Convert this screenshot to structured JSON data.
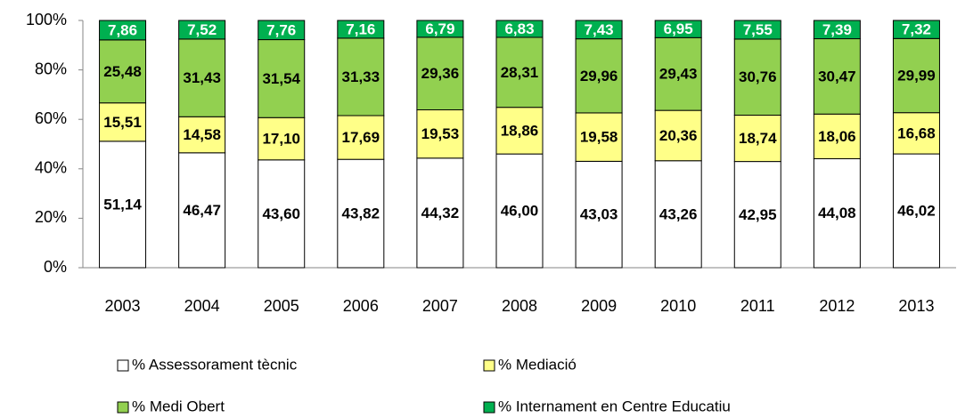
{
  "chart_data": {
    "type": "stacked_bar",
    "categories": [
      "2003",
      "2004",
      "2005",
      "2006",
      "2007",
      "2008",
      "2009",
      "2010",
      "2011",
      "2012",
      "2013"
    ],
    "series": [
      {
        "name": "% Assessorament tècnic",
        "color": "#ffffff",
        "label_color": "#000000",
        "values": [
          51.14,
          46.47,
          43.6,
          43.82,
          44.32,
          46.0,
          43.03,
          43.26,
          42.95,
          44.08,
          46.02
        ],
        "value_labels": [
          "51,14",
          "46,47",
          "43,60",
          "43,82",
          "44,32",
          "46,00",
          "43,03",
          "43,26",
          "42,95",
          "44,08",
          "46,02"
        ]
      },
      {
        "name": "% Mediació",
        "color": "#ffff88",
        "label_color": "#000000",
        "values": [
          15.51,
          14.58,
          17.1,
          17.69,
          19.53,
          18.86,
          19.58,
          20.36,
          18.74,
          18.06,
          16.68
        ],
        "value_labels": [
          "15,51",
          "14,58",
          "17,10",
          "17,69",
          "19,53",
          "18,86",
          "19,58",
          "20,36",
          "18,74",
          "18,06",
          "16,68"
        ]
      },
      {
        "name": "% Medi Obert",
        "color": "#92d050",
        "label_color": "#000000",
        "values": [
          25.48,
          31.43,
          31.54,
          31.33,
          29.36,
          28.31,
          29.96,
          29.43,
          30.76,
          30.47,
          29.99
        ],
        "value_labels": [
          "25,48",
          "31,43",
          "31,54",
          "31,33",
          "29,36",
          "28,31",
          "29,96",
          "29,43",
          "30,76",
          "30,47",
          "29,99"
        ]
      },
      {
        "name": "% Internament en Centre Educatiu",
        "color": "#00b050",
        "label_color": "#ffffff",
        "values": [
          7.86,
          7.52,
          7.76,
          7.16,
          6.79,
          6.83,
          7.43,
          6.95,
          7.55,
          7.39,
          7.32
        ],
        "value_labels": [
          "7,86",
          "7,52",
          "7,76",
          "7,16",
          "6,79",
          "6,83",
          "7,43",
          "6,95",
          "7,55",
          "7,39",
          "7,32"
        ]
      }
    ],
    "ylim": [
      0,
      100
    ],
    "yticks": [
      {
        "value": 0,
        "label": "0%"
      },
      {
        "value": 20,
        "label": "20%"
      },
      {
        "value": 40,
        "label": "40%"
      },
      {
        "value": 60,
        "label": "60%"
      },
      {
        "value": 80,
        "label": "80%"
      },
      {
        "value": 100,
        "label": "100%"
      }
    ],
    "grid": false,
    "legend": "bottom"
  }
}
